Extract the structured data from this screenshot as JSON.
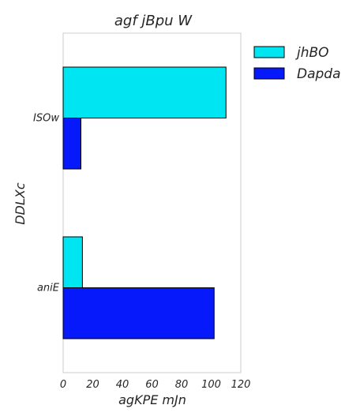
{
  "chart_data": {
    "type": "bar",
    "orientation": "horizontal",
    "title": "agf  jBpu W",
    "xlabel": "agKPE mJn",
    "ylabel": "DDLXc",
    "categories": [
      "ISOw",
      "aniE"
    ],
    "series": [
      {
        "name": "jhBO",
        "values": [
          110,
          13
        ],
        "color": "#00e5f2"
      },
      {
        "name": "Dapda",
        "values": [
          12,
          102
        ],
        "color": "#0519fa"
      }
    ],
    "xlim": [
      0,
      120
    ],
    "xticks": [
      "0",
      "20",
      "40",
      "60",
      "80",
      "100",
      "120"
    ],
    "grid": false,
    "legend_position": "outside-top-right"
  }
}
